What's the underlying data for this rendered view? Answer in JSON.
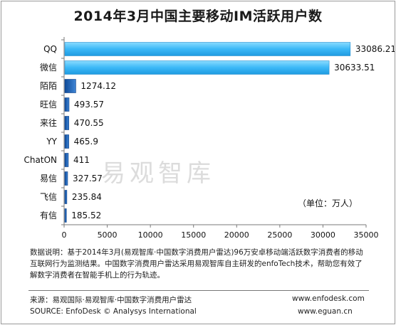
{
  "title": "2014年3月中国主要移动IM活跃用户数",
  "watermark": "易观智库",
  "unit_label": "（单位：万人）",
  "note_lines": [
    "数据说明：基于2014年3月(易观智库·中国数字消费用户雷达)96万安卓移动端活跃数字消费者的移动",
    "互联网行为监测结果。中国数字消费用户雷达采用易观智库自主研发的enfoTech技术，帮助您有效了",
    "解数字消费者在智能手机上的行为轨迹。"
  ],
  "footer": {
    "source_cn": "来源：易观国际·易观智库·中国数字消费用户雷达",
    "source_en": "SOURCE: EnfoDesk © Analysys International",
    "url1": "www.enfodesk.com",
    "url2": "www.eguan.cn"
  },
  "colors": {
    "bar_top": "#3bb8f7",
    "bar_top_light": "#7fd6ff",
    "bar_small": "#1a5fb4"
  },
  "chart_data": {
    "type": "bar",
    "orientation": "horizontal",
    "title": "2014年3月中国主要移动IM活跃用户数",
    "categories": [
      "QQ",
      "微信",
      "陌陌",
      "旺信",
      "来往",
      "YY",
      "ChatON",
      "易信",
      "飞信",
      "有信"
    ],
    "values": [
      33086.21,
      30633.51,
      1274.12,
      493.57,
      470.55,
      465.9,
      411,
      327.57,
      235.84,
      185.52
    ],
    "value_labels": [
      "33086.21",
      "30633.51",
      "1274.12",
      "493.57",
      "470.55",
      "465.9",
      "411",
      "327.57",
      "235.84",
      "185.52"
    ],
    "xlim": [
      0,
      35000
    ],
    "xticks": [
      0,
      5000,
      10000,
      15000,
      20000,
      25000,
      30000,
      35000
    ],
    "grid": false,
    "unit": "万人"
  }
}
